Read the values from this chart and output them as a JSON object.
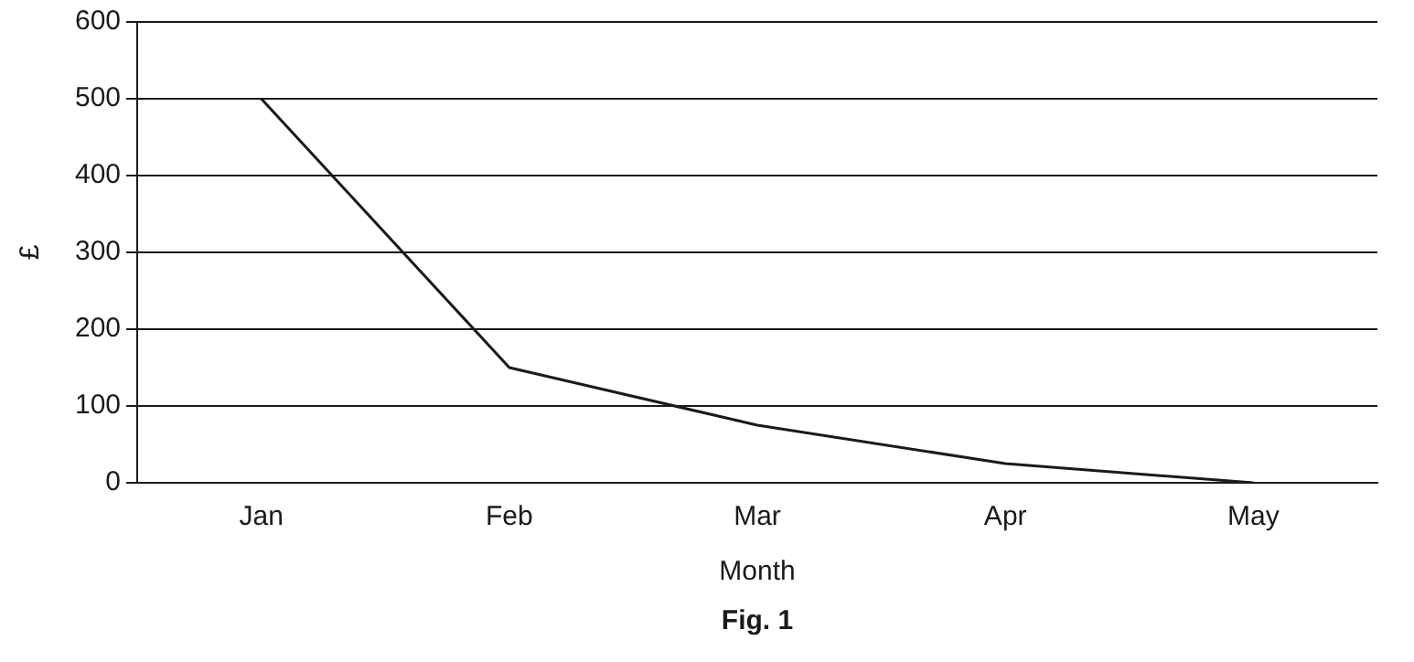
{
  "chart_data": {
    "type": "line",
    "xlabel": "Month",
    "ylabel": "£",
    "categories": [
      "Jan",
      "Feb",
      "Mar",
      "Apr",
      "May"
    ],
    "series": [
      {
        "color": "#1a1a1a",
        "values": [
          500,
          150,
          75,
          25,
          0
        ]
      }
    ],
    "ylim": [
      0,
      600
    ],
    "yticks": [
      0,
      100,
      200,
      300,
      400,
      500,
      600
    ],
    "grid": "y",
    "legend": false,
    "marker": "none",
    "annotations": [
      "Fig. 1"
    ]
  }
}
